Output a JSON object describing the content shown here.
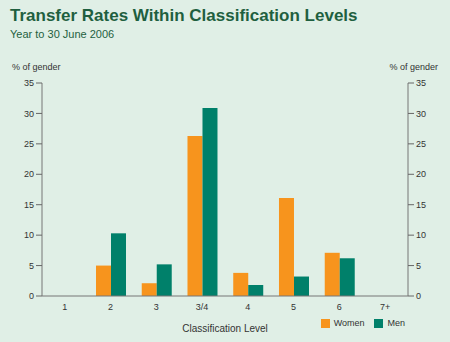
{
  "chart_data": {
    "type": "bar",
    "title": "Transfer Rates Within Classification Levels",
    "subtitle": "Year to 30 June 2006",
    "x_label": "Classification Level",
    "y_label": "% of gender",
    "y2_label": "% of gender",
    "categories": [
      "1",
      "2",
      "3",
      "3/4",
      "4",
      "5",
      "6",
      "7+"
    ],
    "series": [
      {
        "name": "Women",
        "color": "#f7941d",
        "values": [
          null,
          5.0,
          2.1,
          26.3,
          3.8,
          16.1,
          7.1,
          null
        ]
      },
      {
        "name": "Men",
        "color": "#00806a",
        "values": [
          null,
          10.3,
          5.2,
          30.9,
          1.8,
          3.2,
          6.2,
          null
        ]
      }
    ],
    "ylim": [
      0,
      35
    ],
    "yticks": [
      0,
      5,
      10,
      15,
      20,
      25,
      30,
      35
    ],
    "y2lim": [
      0,
      35
    ],
    "y2ticks": [
      0,
      5,
      10,
      15,
      20,
      25,
      30,
      35
    ],
    "grid": false,
    "legend": "lower right"
  }
}
